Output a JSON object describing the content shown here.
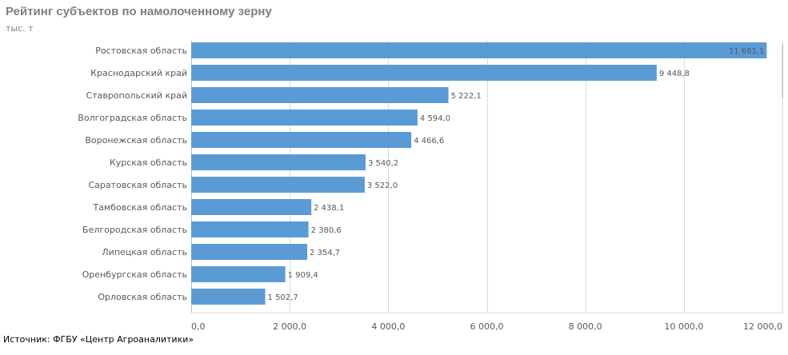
{
  "header": {
    "title": "Рейтинг субъектов по намолоченному зерну",
    "subtitle": "тыс. т"
  },
  "footer": {
    "source": "Источник: ФГБУ «Центр Агроаналитики»"
  },
  "colors": {
    "bar": "#5b9bd5",
    "grid": "#d9d9d9",
    "axis_text": "#595959"
  },
  "chart_data": {
    "type": "bar",
    "orientation": "horizontal",
    "title": "Рейтинг субъектов по намолоченному зерну",
    "units": "тыс. т",
    "categories": [
      "Ростовская область",
      "Краснодарский край",
      "Ставропольский край",
      "Волгоградская область",
      "Воронежская область",
      "Курская область",
      "Саратовская область",
      "Тамбовская область",
      "Белгородская область",
      "Липецкая область",
      "Оренбургская область",
      "Орловская область"
    ],
    "values": [
      11681.1,
      9448.8,
      5222.1,
      4594.0,
      4466.6,
      3540.2,
      3522.0,
      2438.1,
      2380.6,
      2354.7,
      1909.4,
      1502.7
    ],
    "value_labels": [
      "11 681,1",
      "9 448,8",
      "5 222,1",
      "4 594,0",
      "4 466,6",
      "3 540,2",
      "3 522,0",
      "2 438,1",
      "2 380,6",
      "2 354,7",
      "1 909,4",
      "1 502,7"
    ],
    "xlim": [
      0,
      12000
    ],
    "xticks": [
      0,
      2000,
      4000,
      6000,
      8000,
      10000,
      12000
    ],
    "xtick_labels": [
      "0,0",
      "2 000,0",
      "4 000,0",
      "6 000,0",
      "8 000,0",
      "10 000,0",
      "12 000,0"
    ],
    "grid": true,
    "legend": "none"
  }
}
